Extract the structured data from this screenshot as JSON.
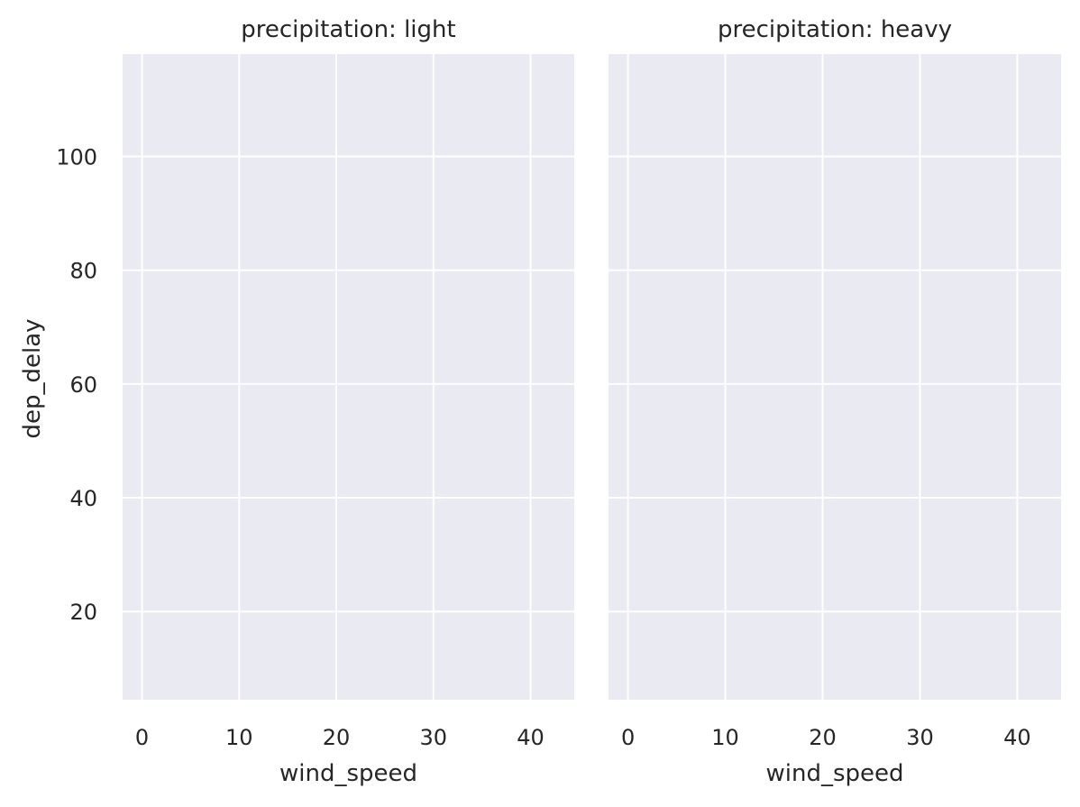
{
  "chart_data": {
    "type": "scatter",
    "layout": "faceted",
    "facet_variable": "precipitation",
    "xlabel": "wind_speed",
    "ylabel": "dep_delay",
    "xlim": [
      -2,
      44.5
    ],
    "ylim": [
      4.5,
      118
    ],
    "xticks": [
      0,
      10,
      20,
      30,
      40
    ],
    "yticks": [
      20,
      40,
      60,
      80,
      100
    ],
    "grid": true,
    "background_color": "#EAEAF2",
    "grid_color": "#FFFFFF",
    "facets": [
      {
        "title": "precipitation: light",
        "x": [],
        "y": []
      },
      {
        "title": "precipitation: heavy",
        "x": [],
        "y": []
      }
    ]
  }
}
